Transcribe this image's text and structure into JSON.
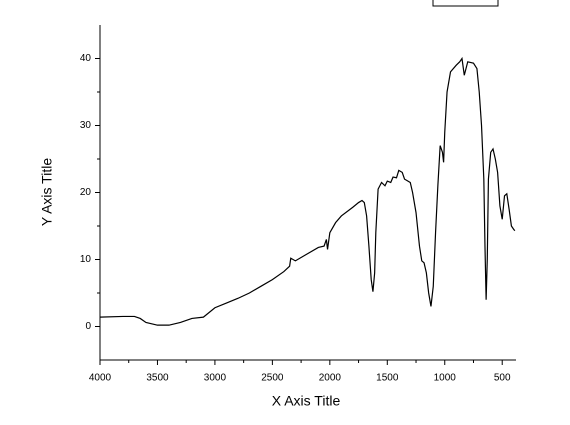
{
  "chart_data": {
    "type": "line",
    "xlabel": "X Axis Title",
    "ylabel": "Y Axis Title",
    "xlim": [
      4000,
      380
    ],
    "ylim": [
      -5,
      45
    ],
    "xticks": [
      4000,
      3500,
      3000,
      2500,
      2000,
      1500,
      1000,
      500
    ],
    "yticks": [
      0,
      10,
      20,
      30,
      40
    ],
    "series": [
      {
        "color": "#000000",
        "x": [
          4000,
          3800,
          3700,
          3650,
          3600,
          3500,
          3400,
          3300,
          3200,
          3100,
          3000,
          2900,
          2800,
          2700,
          2600,
          2500,
          2400,
          2350,
          2340,
          2300,
          2200,
          2100,
          2050,
          2030,
          2020,
          2000,
          1950,
          1900,
          1800,
          1750,
          1720,
          1700,
          1680,
          1660,
          1640,
          1625,
          1610,
          1600,
          1580,
          1550,
          1520,
          1500,
          1470,
          1450,
          1420,
          1400,
          1370,
          1350,
          1320,
          1300,
          1280,
          1250,
          1220,
          1200,
          1180,
          1160,
          1140,
          1120,
          1100,
          1080,
          1060,
          1040,
          1020,
          1010,
          1000,
          980,
          950,
          900,
          870,
          850,
          830,
          800,
          750,
          720,
          700,
          680,
          660,
          650,
          640,
          630,
          620,
          600,
          580,
          560,
          540,
          520,
          500,
          480,
          460,
          440,
          420,
          400,
          390
        ],
        "values": [
          1.4,
          1.5,
          1.5,
          1.2,
          0.6,
          0.2,
          0.2,
          0.6,
          1.2,
          1.4,
          2.8,
          3.5,
          4.2,
          5.0,
          6.0,
          7.0,
          8.2,
          9.0,
          10.2,
          9.8,
          10.8,
          11.8,
          12.0,
          13.0,
          11.5,
          14.0,
          15.5,
          16.5,
          17.8,
          18.5,
          18.8,
          18.5,
          16.5,
          12,
          7,
          5.2,
          8,
          14,
          20.5,
          21.5,
          21,
          21.7,
          21.5,
          22.3,
          22.2,
          23.3,
          23.0,
          22.0,
          21.7,
          21.5,
          20,
          17,
          12,
          9.8,
          9.5,
          8,
          5,
          3.0,
          6,
          14,
          21,
          27,
          26,
          24.5,
          29,
          35,
          38,
          39,
          39.5,
          40,
          37.5,
          39.5,
          39.3,
          38.5,
          35,
          30,
          22,
          12,
          4,
          10,
          22,
          26,
          26.5,
          25,
          23,
          18,
          16,
          19.5,
          19.8,
          17.5,
          15,
          14.5,
          14.3
        ]
      }
    ]
  }
}
